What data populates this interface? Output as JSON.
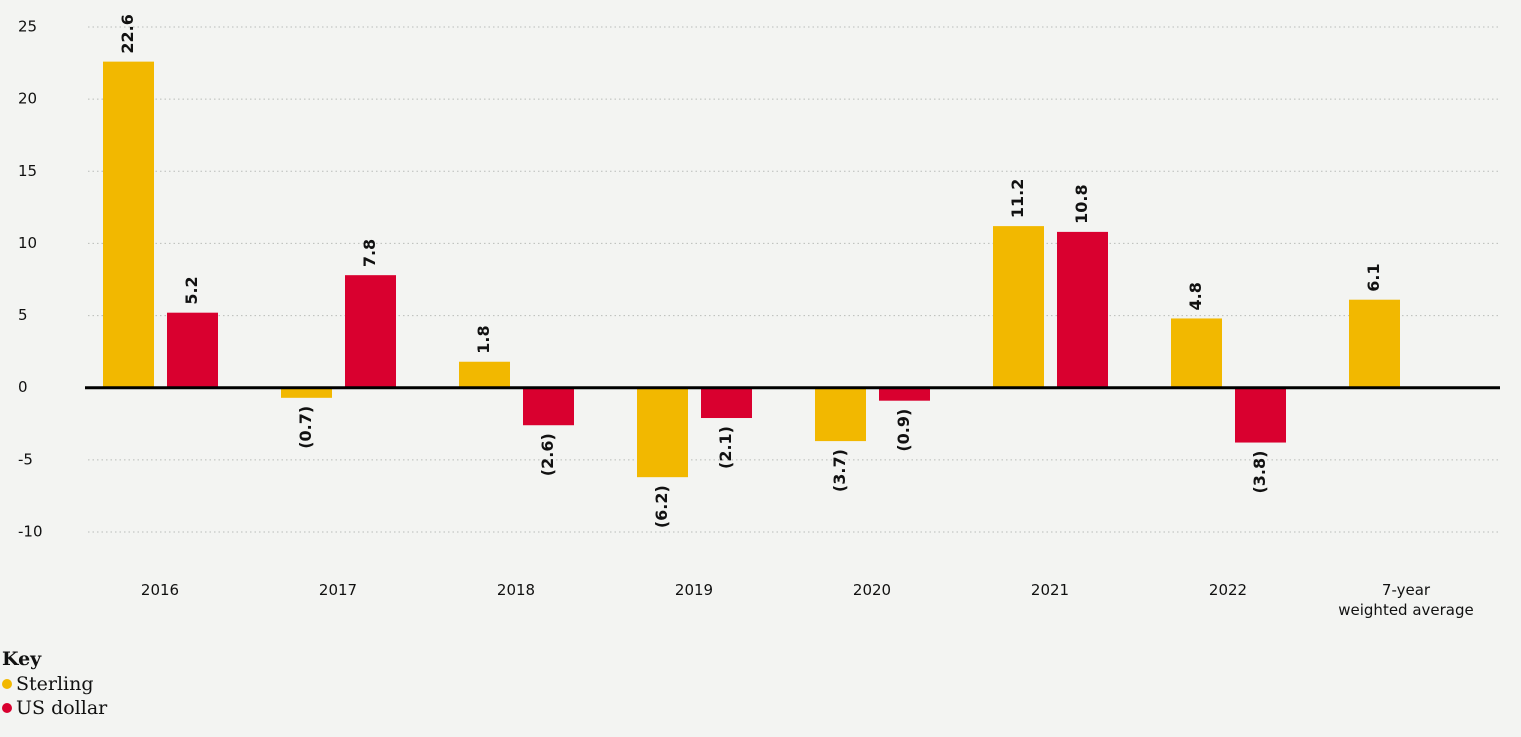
{
  "chart_data": {
    "type": "bar",
    "categories": [
      "2016",
      "2017",
      "2018",
      "2019",
      "2020",
      "2021",
      "2022",
      "7-year\nweighted average"
    ],
    "series": [
      {
        "name": "Sterling",
        "color": "#f2b800",
        "values": [
          22.6,
          -0.7,
          1.8,
          -6.2,
          -3.7,
          11.2,
          4.8,
          6.1
        ],
        "value_labels": [
          "22.6",
          "(0.7)",
          "1.8",
          "(6.2)",
          "(3.7)",
          "11.2",
          "4.8",
          "6.1"
        ]
      },
      {
        "name": "US dollar",
        "color": "#d9002f",
        "values": [
          5.2,
          7.8,
          -2.6,
          -2.1,
          -0.9,
          10.8,
          -3.8,
          null
        ],
        "value_labels": [
          "5.2",
          "7.8",
          "(2.6)",
          "(2.1)",
          "(0.9)",
          "10.8",
          "(3.8)",
          null
        ]
      }
    ],
    "ylim": [
      -10,
      25
    ],
    "yticks": [
      -10,
      -5,
      0,
      5,
      10,
      15,
      20,
      25
    ],
    "grid": true,
    "legend_title": "Key"
  }
}
